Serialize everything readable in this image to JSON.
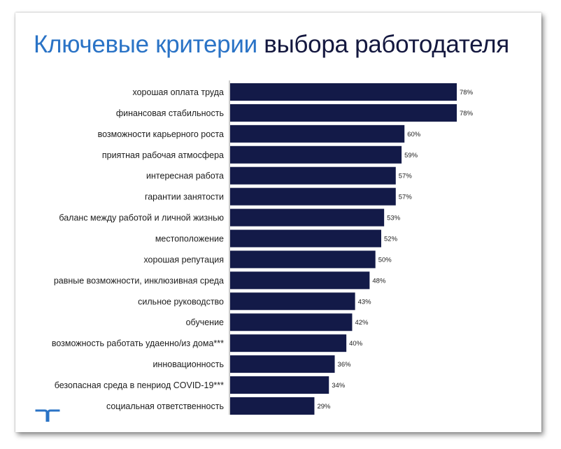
{
  "title": {
    "part1": "Ключевые критерии",
    "part2": "выбора работодателя"
  },
  "colors": {
    "title_accent": "#2a73c6",
    "title_dark": "#14183f",
    "bar": "#131a48",
    "logo": "#2a73c6"
  },
  "icons": {
    "logo": "randstad-logo-icon"
  },
  "chart_data": {
    "type": "bar",
    "orientation": "horizontal",
    "title": "Ключевые критерии выбора работодателя",
    "categories": [
      "хорошая оплата труда",
      "финансовая стабильность",
      "возможности карьерного роста",
      "приятная рабочая атмосфера",
      "интересная работа",
      "гарантии занятости",
      "баланс между работой и личной жизнью",
      "местоположение",
      "хорошая репутация",
      "равные возможности, инклюзивная среда",
      "сильное руководство",
      "обучение",
      "возможность работать удаенно/из дома***",
      "инновационность",
      "безопасная среда в пенриод COVID-19***",
      "социальная ответственность"
    ],
    "values": [
      78,
      78,
      60,
      59,
      57,
      57,
      53,
      52,
      50,
      48,
      43,
      42,
      40,
      36,
      34,
      29
    ],
    "value_labels": [
      "78%",
      "78%",
      "60%",
      "59%",
      "57%",
      "57%",
      "53%",
      "52%",
      "50%",
      "48%",
      "43%",
      "42%",
      "40%",
      "36%",
      "34%",
      "29%"
    ],
    "unit": "%",
    "xlim": [
      0,
      78
    ],
    "grid": false,
    "legend": "none"
  }
}
